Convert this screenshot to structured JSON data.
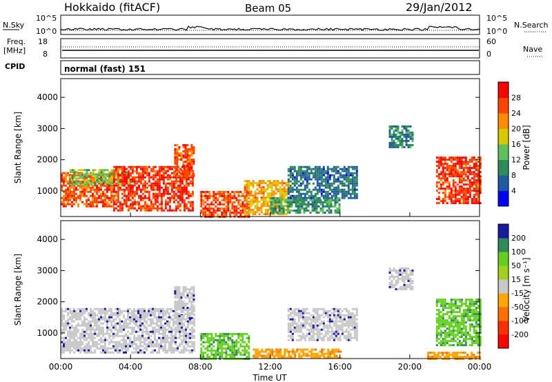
{
  "header": {
    "station": "Hokkaido (fitACF)",
    "beam": "Beam 05",
    "date": "29/Jan/2012"
  },
  "noise_panel": {
    "left_label": "N.Sky",
    "right_label": "N.Search",
    "ticks_left": [
      "10^5",
      "10^0"
    ],
    "ticks_right": [
      "10^5",
      "10^0"
    ]
  },
  "freq_panel": {
    "left_label_1": "Freq.",
    "left_label_2": "[MHz]",
    "right_label": "Nave",
    "ticks_left": [
      "18",
      "8"
    ],
    "ticks_right": [
      "60",
      "0"
    ]
  },
  "cpid_panel": {
    "label": "CPID",
    "mode_text": "normal (fast) 151"
  },
  "power_panel": {
    "ylabel": "Slant Range [km]",
    "yticks": [
      "4000",
      "3000",
      "2000",
      "1000"
    ],
    "colorbar_label": "Power [dB]",
    "colorbar_ticks": [
      "28",
      "24",
      "20",
      "16",
      "12",
      "8",
      "4"
    ]
  },
  "velocity_panel": {
    "ylabel": "Slant Range [km]",
    "yticks": [
      "4000",
      "3000",
      "2000",
      "1000"
    ],
    "colorbar_label": "Velocity [m s⁻¹]",
    "colorbar_ticks": [
      "200",
      "100",
      "50",
      "15",
      "-15",
      "-50",
      "-100",
      "-200"
    ]
  },
  "xaxis": {
    "ticks": [
      "00:00",
      "04:00",
      "08:00",
      "12:00",
      "16:00",
      "20:00",
      "00:00"
    ],
    "label": "Time UT"
  },
  "colors": {
    "power_scale": [
      "#0000ff",
      "#1e5aa0",
      "#2e8b57",
      "#5fbf5f",
      "#d8c800",
      "#ff8c00",
      "#ff4500",
      "#ff0000"
    ],
    "velocity_scale": [
      "#1a1aa0",
      "#2e8b57",
      "#66d020",
      "#a0d020",
      "#c8c8c8",
      "#ffa500",
      "#ff7000",
      "#ff3000",
      "#ff0000"
    ]
  },
  "chart_data": [
    {
      "type": "heatmap",
      "title": "Power",
      "xlabel": "Time UT",
      "ylabel": "Slant Range [km]",
      "x_range_hours": [
        0,
        24
      ],
      "y_range_km": [
        180,
        4600
      ],
      "colorbar_range_dB": [
        0,
        30
      ],
      "echo_regions": [
        {
          "t_start": 0.0,
          "t_end": 3.0,
          "r_start": 500,
          "r_end": 1600,
          "value": 25
        },
        {
          "t_start": 0.5,
          "t_end": 4.0,
          "r_start": 1200,
          "r_end": 1700,
          "value": 14
        },
        {
          "t_start": 3.0,
          "t_end": 7.6,
          "r_start": 400,
          "r_end": 1800,
          "value": 27
        },
        {
          "t_start": 6.5,
          "t_end": 7.6,
          "r_start": 1500,
          "r_end": 2500,
          "value": 25
        },
        {
          "t_start": 8.0,
          "t_end": 10.8,
          "r_start": 200,
          "r_end": 1000,
          "value": 26
        },
        {
          "t_start": 10.5,
          "t_end": 13.0,
          "r_start": 250,
          "r_end": 1350,
          "value": 20
        },
        {
          "t_start": 12.0,
          "t_end": 16.0,
          "r_start": 300,
          "r_end": 800,
          "value": 10
        },
        {
          "t_start": 13.0,
          "t_end": 17.0,
          "r_start": 800,
          "r_end": 1800,
          "value": 6
        },
        {
          "t_start": 18.8,
          "t_end": 20.2,
          "r_start": 2400,
          "r_end": 3100,
          "value": 8
        },
        {
          "t_start": 21.5,
          "t_end": 24.0,
          "r_start": 600,
          "r_end": 2100,
          "value": 27
        }
      ]
    },
    {
      "type": "heatmap",
      "title": "Velocity",
      "xlabel": "Time UT",
      "ylabel": "Slant Range [km]",
      "x_range_hours": [
        0,
        24
      ],
      "y_range_km": [
        180,
        4600
      ],
      "colorbar_range_ms": [
        -200,
        200
      ],
      "echo_regions": [
        {
          "t_start": 0.0,
          "t_end": 7.6,
          "r_start": 400,
          "r_end": 1800,
          "value": 0
        },
        {
          "t_start": 6.5,
          "t_end": 7.6,
          "r_start": 1500,
          "r_end": 2500,
          "value": 0
        },
        {
          "t_start": 8.0,
          "t_end": 10.8,
          "r_start": 200,
          "r_end": 1000,
          "value": 40
        },
        {
          "t_start": 11.0,
          "t_end": 16.0,
          "r_start": 200,
          "r_end": 500,
          "value": -60
        },
        {
          "t_start": 13.0,
          "t_end": 17.0,
          "r_start": 800,
          "r_end": 1800,
          "value": 0
        },
        {
          "t_start": 18.8,
          "t_end": 20.2,
          "r_start": 2400,
          "r_end": 3100,
          "value": 0
        },
        {
          "t_start": 21.0,
          "t_end": 24.0,
          "r_start": 200,
          "r_end": 400,
          "value": -60
        },
        {
          "t_start": 21.5,
          "t_end": 24.0,
          "r_start": 600,
          "r_end": 2100,
          "value": 30
        }
      ]
    }
  ]
}
